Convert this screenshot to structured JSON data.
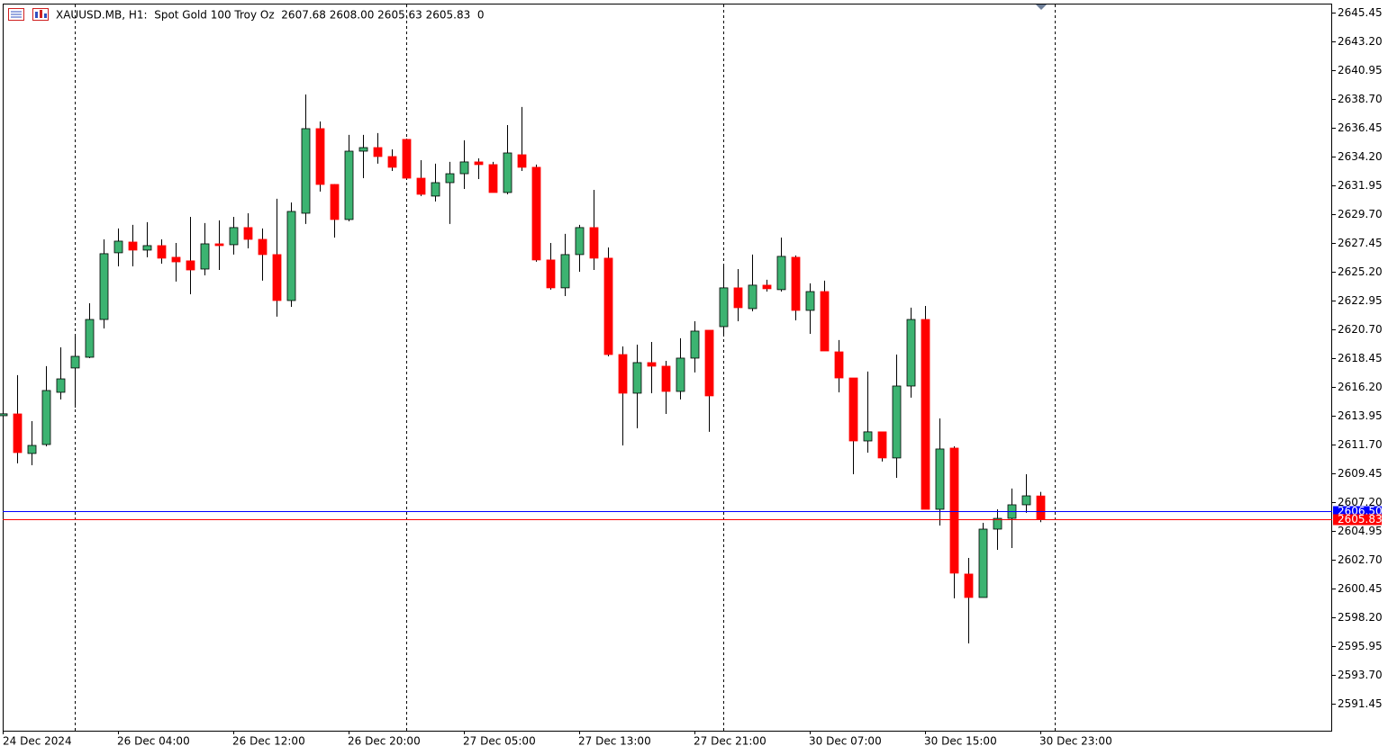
{
  "chart_data": {
    "type": "candlestick",
    "title": "XAUUSD.MB, H1:  Spot Gold 100 Troy Oz  2607.68 2608.00 2605.63 2605.83  0",
    "up_color": "#3cb371",
    "down_color": "#ff0000",
    "wick_color": "#000000",
    "grid": false,
    "categories": [
      "24 Dec 2024",
      null,
      null,
      null,
      null,
      null,
      null,
      null,
      "26 Dec 04:00",
      null,
      null,
      null,
      null,
      null,
      null,
      null,
      "26 Dec 12:00",
      null,
      null,
      null,
      null,
      null,
      null,
      null,
      "26 Dec 20:00",
      null,
      null,
      null,
      null,
      null,
      null,
      null,
      "27 Dec 05:00",
      null,
      null,
      null,
      null,
      null,
      null,
      null,
      "27 Dec 13:00",
      null,
      null,
      null,
      null,
      null,
      null,
      null,
      "27 Dec 21:00",
      null,
      null,
      null,
      null,
      null,
      null,
      null,
      "30 Dec 07:00",
      null,
      null,
      null,
      null,
      null,
      null,
      null,
      "30 Dec 15:00",
      null,
      null,
      null,
      null,
      null,
      null,
      null,
      "30 Dec 23:00"
    ],
    "open": [
      2613.95,
      2614.09,
      2611.0,
      2611.7,
      2615.78,
      2617.68,
      2618.52,
      2621.47,
      2626.68,
      2627.52,
      2626.89,
      2627.24,
      2626.33,
      2626.05,
      2625.41,
      2627.38,
      2627.31,
      2628.65,
      2627.73,
      2626.54,
      2622.95,
      2629.77,
      2636.38,
      2632.02,
      2629.28,
      2634.62,
      2634.9,
      2634.2,
      2635.54,
      2632.51,
      2631.11,
      2632.16,
      2632.86,
      2633.78,
      2633.57,
      2631.39,
      2634.34,
      2633.36,
      2626.12,
      2623.94,
      2626.54,
      2628.65,
      2626.26,
      2618.73,
      2615.71,
      2618.1,
      2617.82,
      2615.85,
      2618.45,
      2620.63,
      2620.91,
      2623.94,
      2622.32,
      2624.15,
      2623.8,
      2626.33,
      2622.18,
      2623.65,
      2618.94,
      2616.9,
      2611.98,
      2612.69,
      2610.65,
      2616.27,
      2621.47,
      2606.64,
      2611.42,
      2601.58,
      2599.75,
      2605.09,
      2605.93,
      2606.99,
      2607.68
    ],
    "high": [
      2614.2,
      2617.12,
      2613.53,
      2617.82,
      2619.29,
      2620.21,
      2622.74,
      2627.73,
      2628.58,
      2628.86,
      2629.07,
      2627.73,
      2627.45,
      2629.49,
      2629.0,
      2629.21,
      2629.49,
      2629.77,
      2628.58,
      2630.9,
      2630.61,
      2639.05,
      2636.94,
      2632.05,
      2635.89,
      2635.89,
      2636.03,
      2634.76,
      2635.6,
      2633.92,
      2633.64,
      2633.78,
      2635.47,
      2634.06,
      2633.78,
      2636.66,
      2638.07,
      2633.57,
      2627.45,
      2628.16,
      2628.86,
      2631.6,
      2627.1,
      2619.36,
      2619.5,
      2619.71,
      2618.24,
      2620.0,
      2621.33,
      2620.63,
      2625.76,
      2625.41,
      2626.54,
      2624.57,
      2627.87,
      2626.47,
      2624.29,
      2624.5,
      2619.86,
      2616.9,
      2617.4,
      2612.69,
      2618.73,
      2622.39,
      2622.53,
      2613.74,
      2611.56,
      2602.84,
      2605.58,
      2606.64,
      2608.26,
      2609.38,
      2608.0
    ],
    "low": [
      2613.9,
      2610.23,
      2610.08,
      2611.56,
      2615.22,
      2614.58,
      2618.45,
      2620.77,
      2625.62,
      2625.62,
      2626.33,
      2625.83,
      2624.43,
      2623.44,
      2624.92,
      2625.34,
      2626.54,
      2627.03,
      2624.5,
      2621.69,
      2622.46,
      2628.93,
      2631.46,
      2627.87,
      2629.14,
      2632.51,
      2633.64,
      2633.07,
      2632.37,
      2631.11,
      2630.69,
      2628.93,
      2631.67,
      2632.44,
      2631.39,
      2631.25,
      2633.07,
      2625.98,
      2623.8,
      2623.3,
      2625.2,
      2625.34,
      2618.59,
      2611.63,
      2612.97,
      2615.71,
      2614.09,
      2615.22,
      2617.33,
      2612.69,
      2620.35,
      2621.33,
      2622.11,
      2623.65,
      2623.65,
      2621.4,
      2620.35,
      2619.01,
      2615.78,
      2609.38,
      2611.07,
      2610.37,
      2609.1,
      2615.36,
      2606.64,
      2605.37,
      2599.68,
      2596.16,
      2599.75,
      2603.47,
      2603.61,
      2606.36,
      2605.63
    ],
    "close": [
      2614.1,
      2611.07,
      2611.63,
      2615.92,
      2616.83,
      2618.59,
      2621.47,
      2626.61,
      2627.59,
      2626.89,
      2627.24,
      2626.26,
      2625.97,
      2625.34,
      2627.38,
      2627.24,
      2628.65,
      2627.73,
      2626.54,
      2622.95,
      2629.91,
      2636.38,
      2632.02,
      2629.28,
      2634.62,
      2634.9,
      2634.2,
      2633.36,
      2632.51,
      2631.25,
      2632.16,
      2632.86,
      2633.78,
      2633.57,
      2631.39,
      2634.48,
      2633.36,
      2626.12,
      2623.94,
      2626.54,
      2628.65,
      2626.26,
      2618.73,
      2615.71,
      2618.1,
      2617.82,
      2615.85,
      2618.45,
      2620.56,
      2615.5,
      2623.94,
      2622.39,
      2624.15,
      2623.87,
      2626.4,
      2622.18,
      2623.65,
      2619.01,
      2616.9,
      2611.98,
      2612.69,
      2610.65,
      2616.27,
      2621.47,
      2606.64,
      2611.35,
      2601.65,
      2599.75,
      2605.09,
      2605.93,
      2606.99,
      2607.69,
      2605.83
    ],
    "ylim": [
      2589.34,
      2646.15
    ],
    "yticks": [
      2645.45,
      {
        "value": 2643.2,
        "label": "2643.20"
      },
      2640.95,
      {
        "value": 2638.7,
        "label": "2638.70"
      },
      2636.45,
      {
        "value": 2634.2,
        "label": "2634.20"
      },
      2631.95,
      {
        "value": 2629.7,
        "label": "2629.70"
      },
      2627.45,
      {
        "value": 2625.2,
        "label": "2625.20"
      },
      2622.95,
      {
        "value": 2620.7,
        "label": "2620.70"
      },
      2618.45,
      {
        "value": 2616.2,
        "label": "2616.20"
      },
      2613.95,
      {
        "value": 2611.7,
        "label": "2611.70"
      },
      2609.45,
      {
        "value": 2607.2,
        "label": "2607.20"
      },
      2604.95,
      {
        "value": 2602.7,
        "label": "2602.70"
      },
      2600.45,
      {
        "value": 2598.2,
        "label": "2598.20"
      },
      2595.95,
      {
        "value": 2593.7,
        "label": "2593.70"
      },
      2591.45
    ],
    "price_lines": [
      {
        "value": 2606.5,
        "label": "2606.50",
        "color": "#0000ff"
      },
      {
        "value": 2605.83,
        "label": "2605.83",
        "color": "#ff0000"
      }
    ]
  }
}
